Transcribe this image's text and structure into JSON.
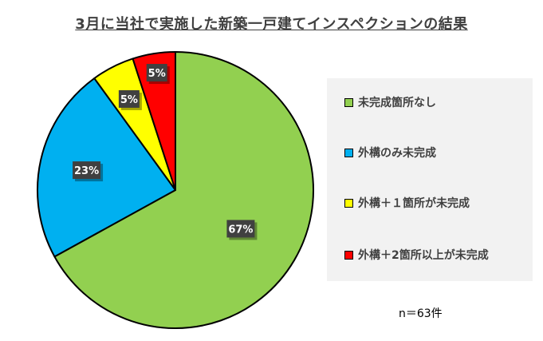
{
  "chart_data": {
    "type": "pie",
    "title": "3月に当社で実施した新築一戸建てインスペクションの結果",
    "slices": [
      {
        "label": "未完成箇所なし",
        "value": 67,
        "data_label": "67%",
        "color": "#92d050"
      },
      {
        "label": "外構のみ未完成",
        "value": 23,
        "data_label": "23%",
        "color": "#00b0f0"
      },
      {
        "label": "外構＋１箇所が未完成",
        "value": 5,
        "data_label": "5%",
        "color": "#ffff00"
      },
      {
        "label": "外構＋2箇所以上が未完成",
        "value": 5,
        "data_label": "5%",
        "color": "#ff0000"
      }
    ],
    "legend_position": "right",
    "note": "n＝63件"
  }
}
